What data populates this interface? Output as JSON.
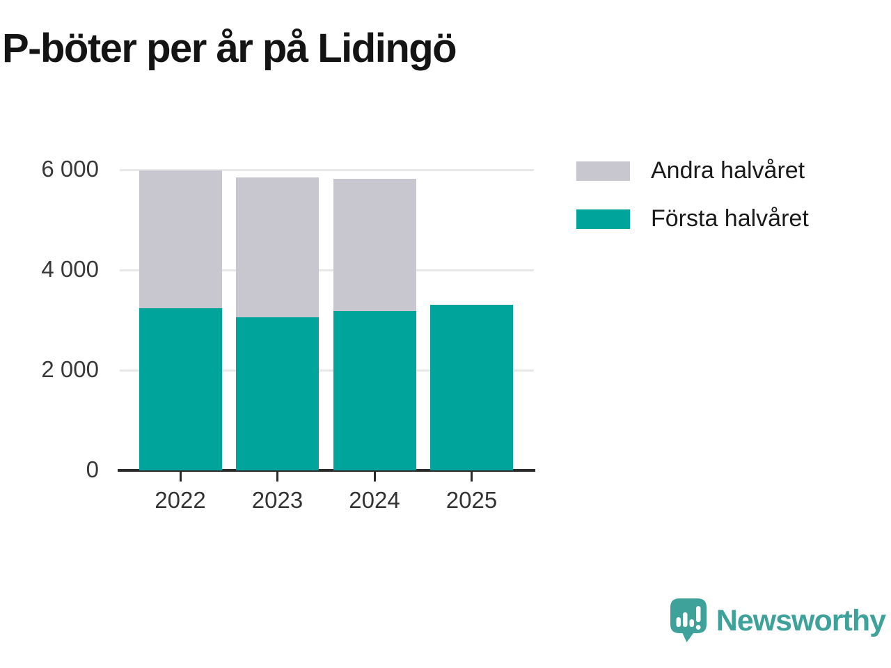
{
  "title": "P-böter per år på Lidingö",
  "chart_data": {
    "type": "bar",
    "stacked": true,
    "title": "P-böter per år på Lidingö",
    "categories": [
      "2022",
      "2023",
      "2024",
      "2025"
    ],
    "series": [
      {
        "name": "Första halvåret",
        "color": "#00a49b",
        "values": [
          3230,
          3060,
          3180,
          3300
        ]
      },
      {
        "name": "Andra halvåret",
        "color": "#c8c6cf",
        "values": [
          2760,
          2790,
          2640,
          0
        ]
      }
    ],
    "totals": [
      5990,
      5850,
      5820,
      3300
    ],
    "xlabel": "",
    "ylabel": "",
    "ylim": [
      0,
      6000
    ],
    "yticks": [
      0,
      2000,
      4000,
      6000
    ],
    "ytick_labels": [
      "0",
      "2 000",
      "4 000",
      "6 000"
    ],
    "grid": "horizontal",
    "legend_position": "top-right"
  },
  "legend": {
    "items": [
      {
        "label": "Andra halvåret",
        "color": "#c8c6cf"
      },
      {
        "label": "Första halvåret",
        "color": "#00a49b"
      }
    ]
  },
  "branding": {
    "name": "Newsworthy",
    "color": "#3ea29b",
    "icon": "bar-chart-speech-bubble-icon"
  }
}
